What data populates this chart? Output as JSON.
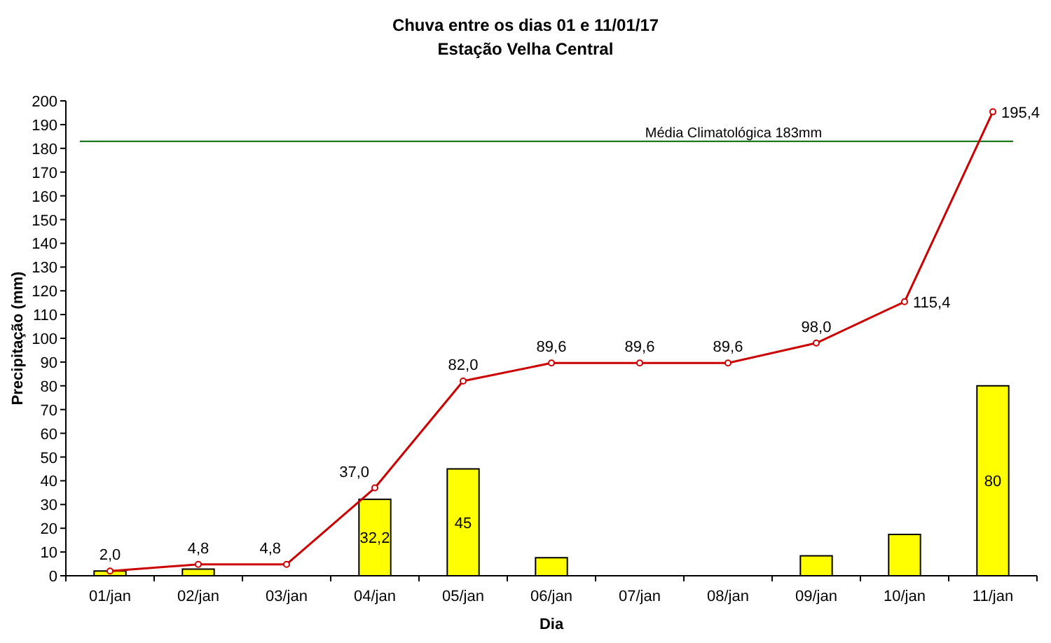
{
  "chart_data": {
    "type": "bar",
    "title": "Chuva entre os dias 01 e 11/01/17",
    "subtitle": "Estação Velha Central",
    "xlabel": "Dia",
    "ylabel": "Precipitação (mm)",
    "categories": [
      "01/jan",
      "02/jan",
      "03/jan",
      "04/jan",
      "05/jan",
      "06/jan",
      "07/jan",
      "08/jan",
      "09/jan",
      "10/jan",
      "11/jan"
    ],
    "series": [
      {
        "color": "#ffff00",
        "values": [
          2,
          2.8,
          0,
          32.2,
          45,
          7.6,
          0,
          0,
          8.4,
          17.4,
          80
        ],
        "value_labels": [
          null,
          null,
          null,
          "32,2",
          "45",
          null,
          null,
          null,
          null,
          null,
          "80"
        ]
      },
      {
        "type": "line",
        "color": "#cc0000",
        "values": [
          2.0,
          4.8,
          4.8,
          37.0,
          82.0,
          89.6,
          89.6,
          89.6,
          98.0,
          115.4,
          195.4
        ],
        "value_labels": [
          "2,0",
          "4,8",
          "4,8",
          "37,0",
          "82,0",
          "89,6",
          "89,6",
          "89,6",
          "98,0",
          "115,4",
          "195,4"
        ]
      }
    ],
    "ylim": [
      0,
      200
    ],
    "yticks": [
      0,
      10,
      20,
      30,
      40,
      50,
      60,
      70,
      80,
      90,
      100,
      110,
      120,
      130,
      140,
      150,
      160,
      170,
      180,
      190,
      200
    ],
    "ref_lines": [
      {
        "axis": "y",
        "value": 183,
        "label": "Média Climatológica 183mm",
        "color": "#006600"
      }
    ],
    "marker": "circle",
    "grid": false
  }
}
